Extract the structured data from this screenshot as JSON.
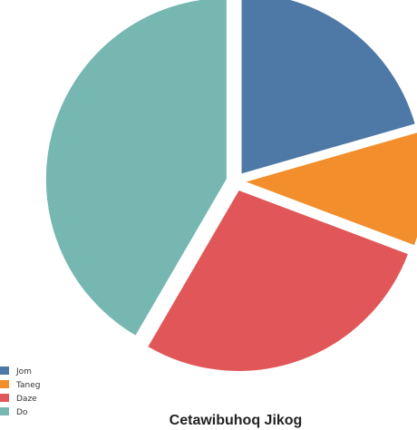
{
  "chart_data": {
    "type": "pie",
    "title": "Cetawibuhoq Jikog",
    "categories": [
      "Jom",
      "Taneg",
      "Daze",
      "Do"
    ],
    "values": [
      20.2,
      10.0,
      27.2,
      40.9
    ],
    "colors": [
      "#4e79a7",
      "#f28e2b",
      "#e15759",
      "#76b7b2"
    ],
    "exploded_gap": true,
    "legend_position": "bottom-left"
  }
}
